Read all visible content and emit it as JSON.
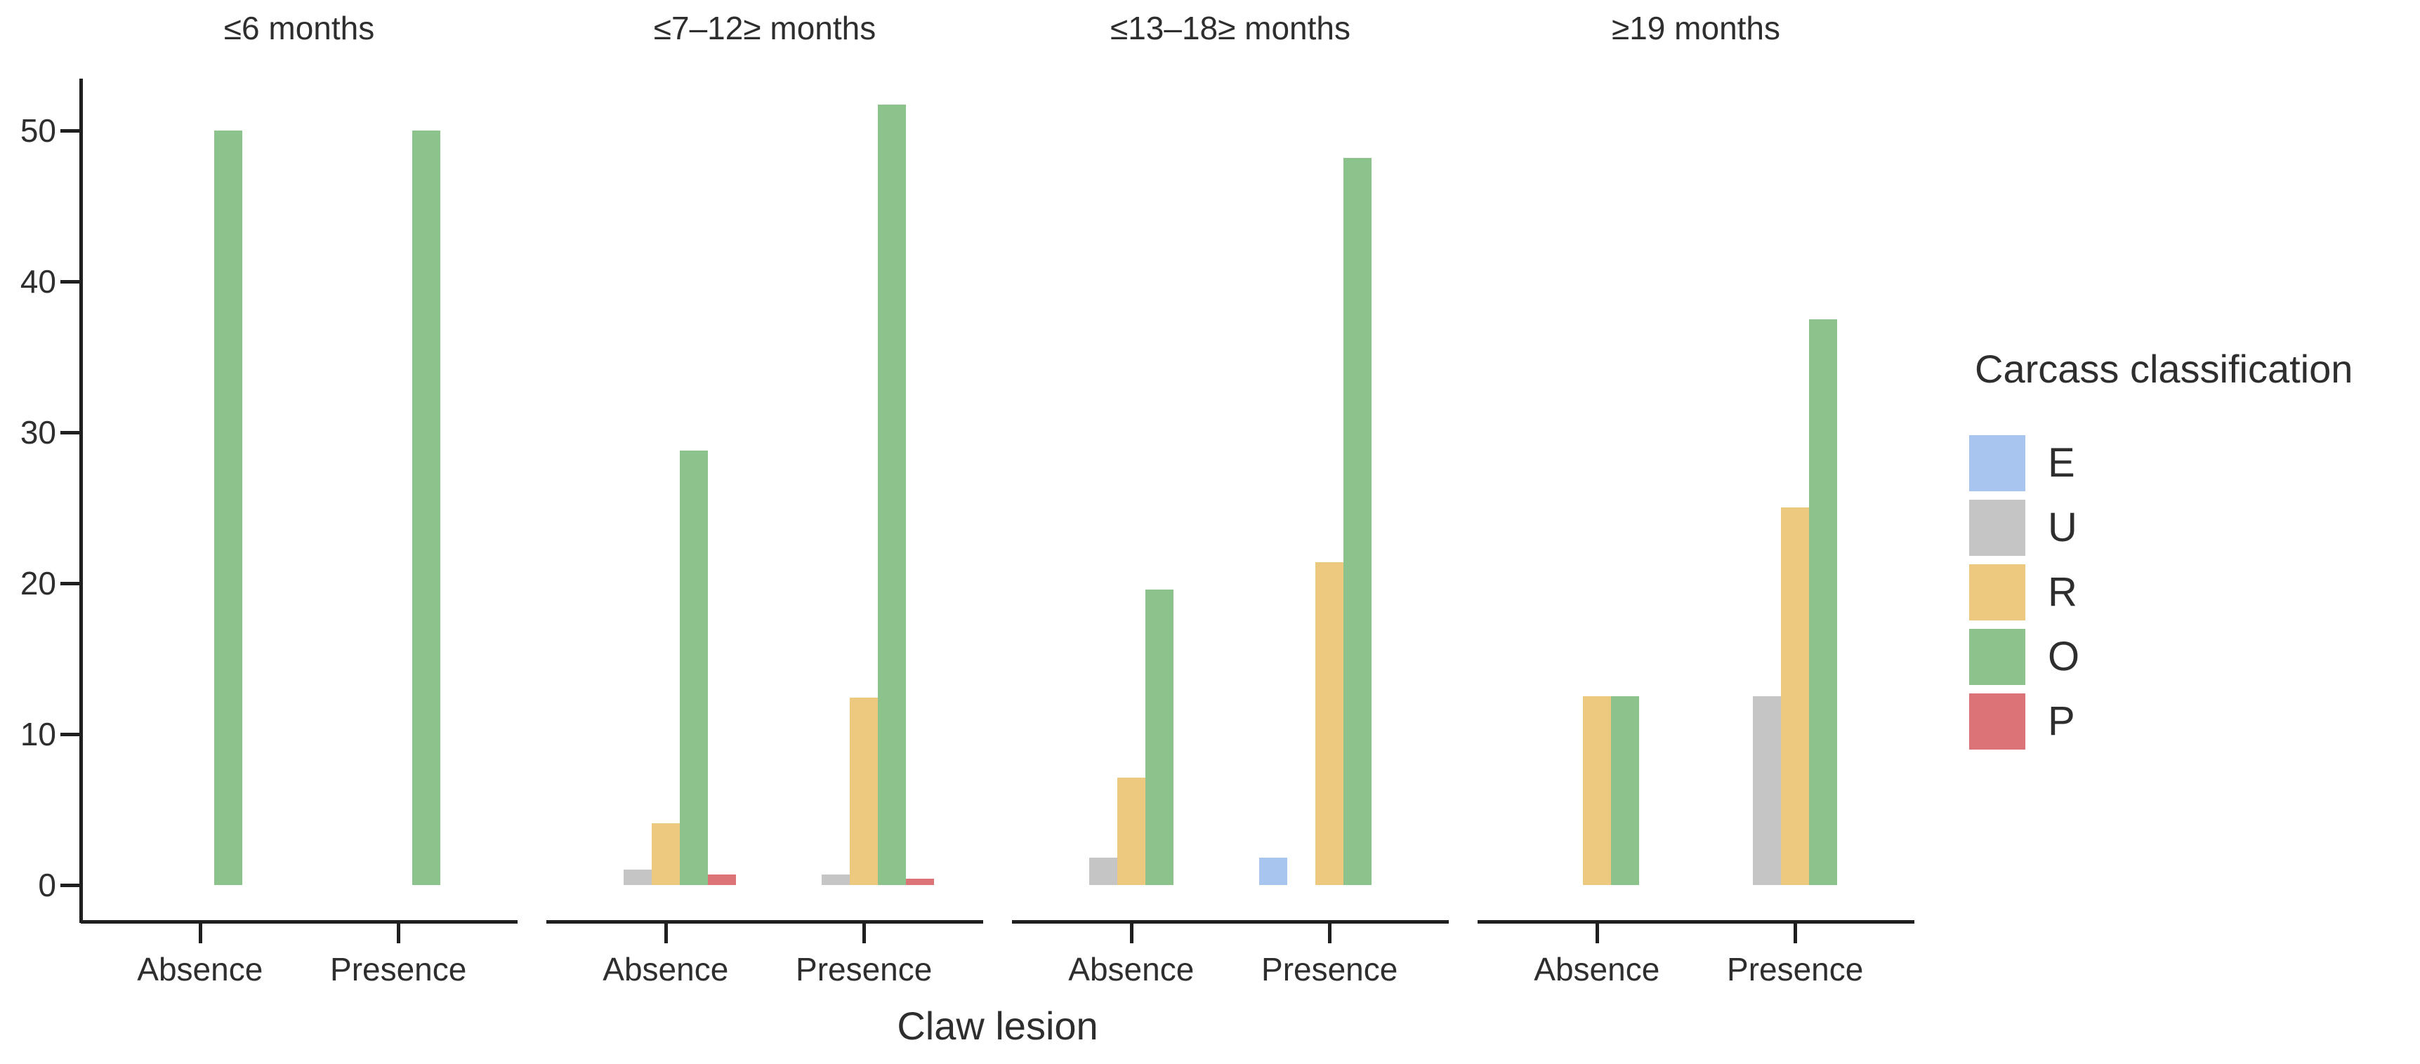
{
  "chart_data": {
    "type": "bar",
    "layout": "grouped-dodged, 4 facets, legend right, no gridlines, white background",
    "xlabel": "Claw lesion",
    "ylabel": "",
    "legend_title": "Carcass classification",
    "legend_position": "right",
    "grid": false,
    "y_ticks": [
      0,
      10,
      20,
      30,
      40,
      50
    ],
    "ylim": [
      0,
      53.3
    ],
    "categories": [
      "Absence",
      "Presence"
    ],
    "series": [
      {
        "name": "E",
        "color": "#a7c5ef"
      },
      {
        "name": "U",
        "color": "#c5c5c5"
      },
      {
        "name": "R",
        "color": "#edc97f"
      },
      {
        "name": "O",
        "color": "#8cc28c"
      },
      {
        "name": "P",
        "color": "#db7377"
      }
    ],
    "facets": [
      {
        "label": "≤6 months",
        "groups": [
          {
            "category": "Absence",
            "values": {
              "E": 0,
              "U": 0,
              "R": 0,
              "O": 50,
              "P": 0
            }
          },
          {
            "category": "Presence",
            "values": {
              "E": 0,
              "U": 0,
              "R": 0,
              "O": 50,
              "P": 0
            }
          }
        ]
      },
      {
        "label": "≤7–12≥ months",
        "groups": [
          {
            "category": "Absence",
            "values": {
              "E": 0,
              "U": 1.0,
              "R": 4.1,
              "O": 28.8,
              "P": 0.7
            }
          },
          {
            "category": "Presence",
            "values": {
              "E": 0,
              "U": 0.7,
              "R": 12.4,
              "O": 51.7,
              "P": 0.4
            }
          }
        ]
      },
      {
        "label": "≤13–18≥ months",
        "groups": [
          {
            "category": "Absence",
            "values": {
              "E": 0,
              "U": 1.8,
              "R": 7.1,
              "O": 19.6,
              "P": 0
            }
          },
          {
            "category": "Presence",
            "values": {
              "E": 1.8,
              "U": 0,
              "R": 21.4,
              "O": 48.2,
              "P": 0
            }
          }
        ]
      },
      {
        "label": "≥19 months",
        "groups": [
          {
            "category": "Absence",
            "values": {
              "E": 0,
              "U": 0,
              "R": 12.5,
              "O": 12.5,
              "P": 0
            }
          },
          {
            "category": "Presence",
            "values": {
              "E": 0,
              "U": 12.5,
              "R": 25,
              "O": 37.5,
              "P": 0
            }
          }
        ]
      }
    ],
    "text_color": "#2e2e2e",
    "axis_color": "#1f1f1f"
  }
}
